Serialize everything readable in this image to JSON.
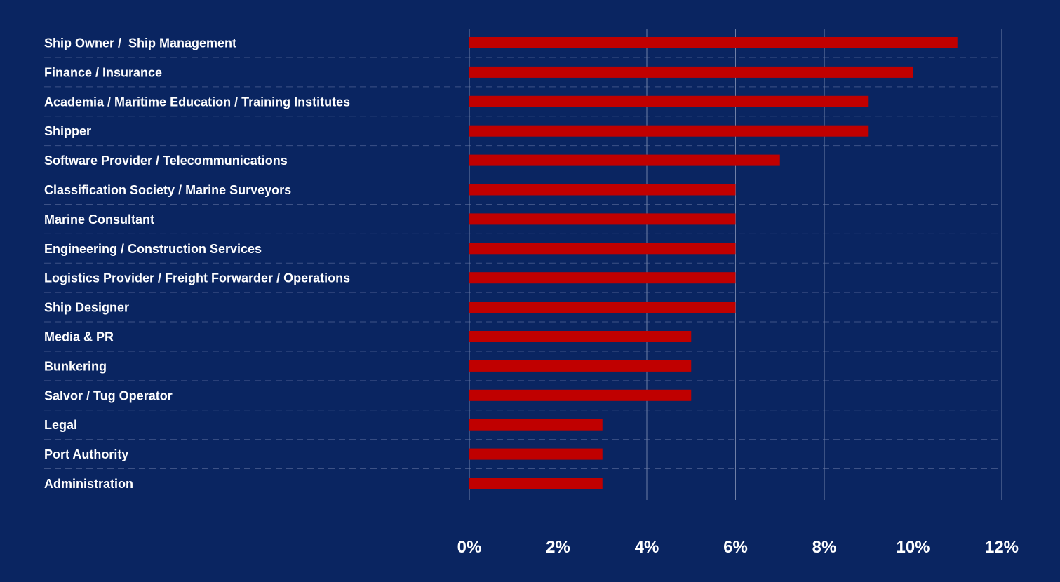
{
  "colors": {
    "background": "#0a2561",
    "bar": "#c00000",
    "grid_major": "#6f7fa6",
    "grid_minor": "#3d5286",
    "text": "#ffffff"
  },
  "chart_data": {
    "type": "bar",
    "orientation": "horizontal",
    "categories": [
      "Ship Owner /  Ship Management",
      "Finance / Insurance",
      "Academia / Maritime Education / Training Institutes",
      "Shipper",
      "Software Provider / Telecommunications",
      "Classification Society / Marine Surveyors",
      "Marine Consultant",
      "Engineering / Construction Services",
      "Logistics Provider / Freight Forwarder / Operations",
      "Ship Designer",
      "Media & PR",
      "Bunkering",
      "Salvor / Tug Operator",
      "Legal",
      "Port Authority",
      "Administration"
    ],
    "values": [
      11,
      10,
      9,
      9,
      7,
      6,
      6,
      6,
      6,
      6,
      5,
      5,
      5,
      3,
      3,
      3
    ],
    "xlim": [
      0,
      12
    ],
    "xticks": [
      0,
      2,
      4,
      6,
      8,
      10,
      12
    ],
    "xtick_labels": [
      "0%",
      "2%",
      "4%",
      "6%",
      "8%",
      "10%",
      "12%"
    ],
    "grid": true,
    "legend": "none"
  }
}
